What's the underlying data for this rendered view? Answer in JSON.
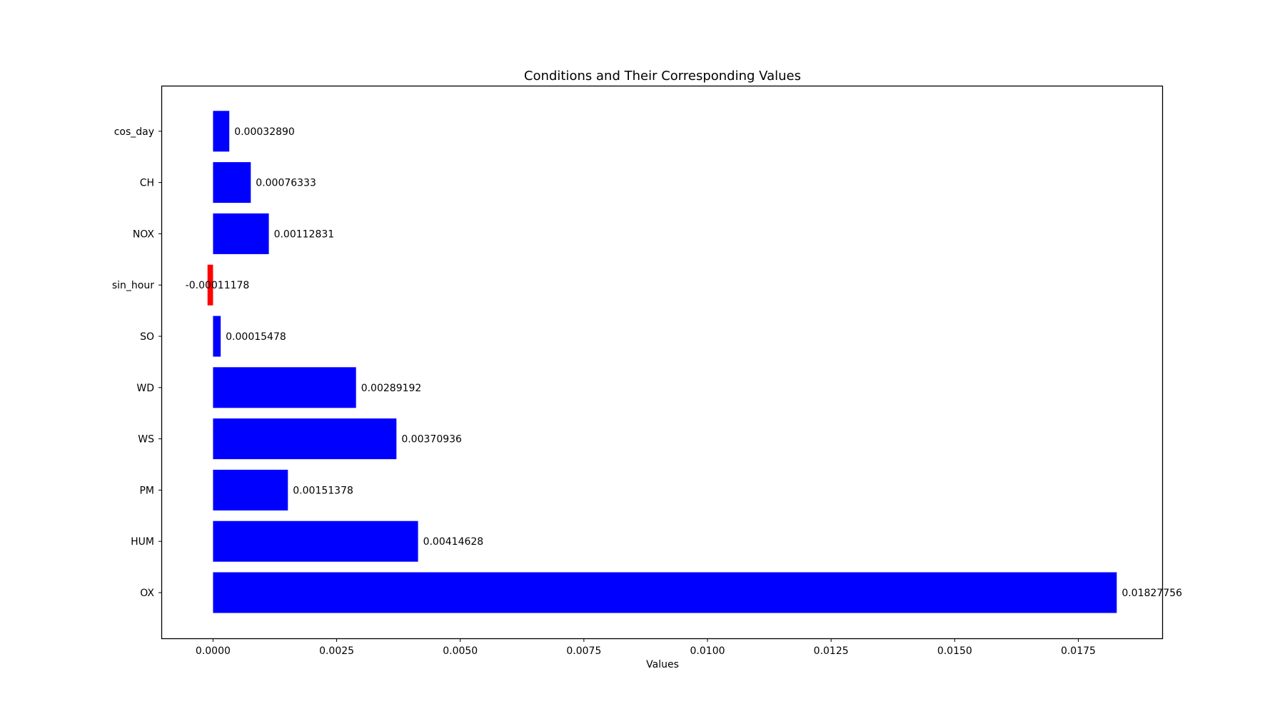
{
  "chart_data": {
    "type": "bar",
    "orientation": "horizontal",
    "title": "Conditions and Their Corresponding Values",
    "xlabel": "Values",
    "ylabel": "",
    "categories": [
      "OX",
      "HUM",
      "PM",
      "WS",
      "WD",
      "SO",
      "sin_hour",
      "NOX",
      "CH",
      "cos_day"
    ],
    "values": [
      0.01827756,
      0.00414628,
      0.00151378,
      0.00370936,
      0.00289192,
      0.00015478,
      -0.00011178,
      0.00112831,
      0.00076333,
      0.0003289
    ],
    "value_labels": [
      "0.01827756",
      "0.00414628",
      "0.00151378",
      "0.00370936",
      "0.00289192",
      "0.00015478",
      "-0.00011178",
      "0.00112831",
      "0.00076333",
      "0.00032890"
    ],
    "xticks": [
      0.0,
      0.0025,
      0.005,
      0.0075,
      0.01,
      0.0125,
      0.015,
      0.0175
    ],
    "xtick_labels": [
      "0.0000",
      "0.0025",
      "0.0050",
      "0.0075",
      "0.0100",
      "0.0125",
      "0.0150",
      "0.0175"
    ],
    "xlim": [
      -0.00103125,
      0.01919703
    ],
    "colors": {
      "positive": "#0000ff",
      "negative": "#ff0000"
    },
    "grid": false,
    "legend": "none"
  }
}
